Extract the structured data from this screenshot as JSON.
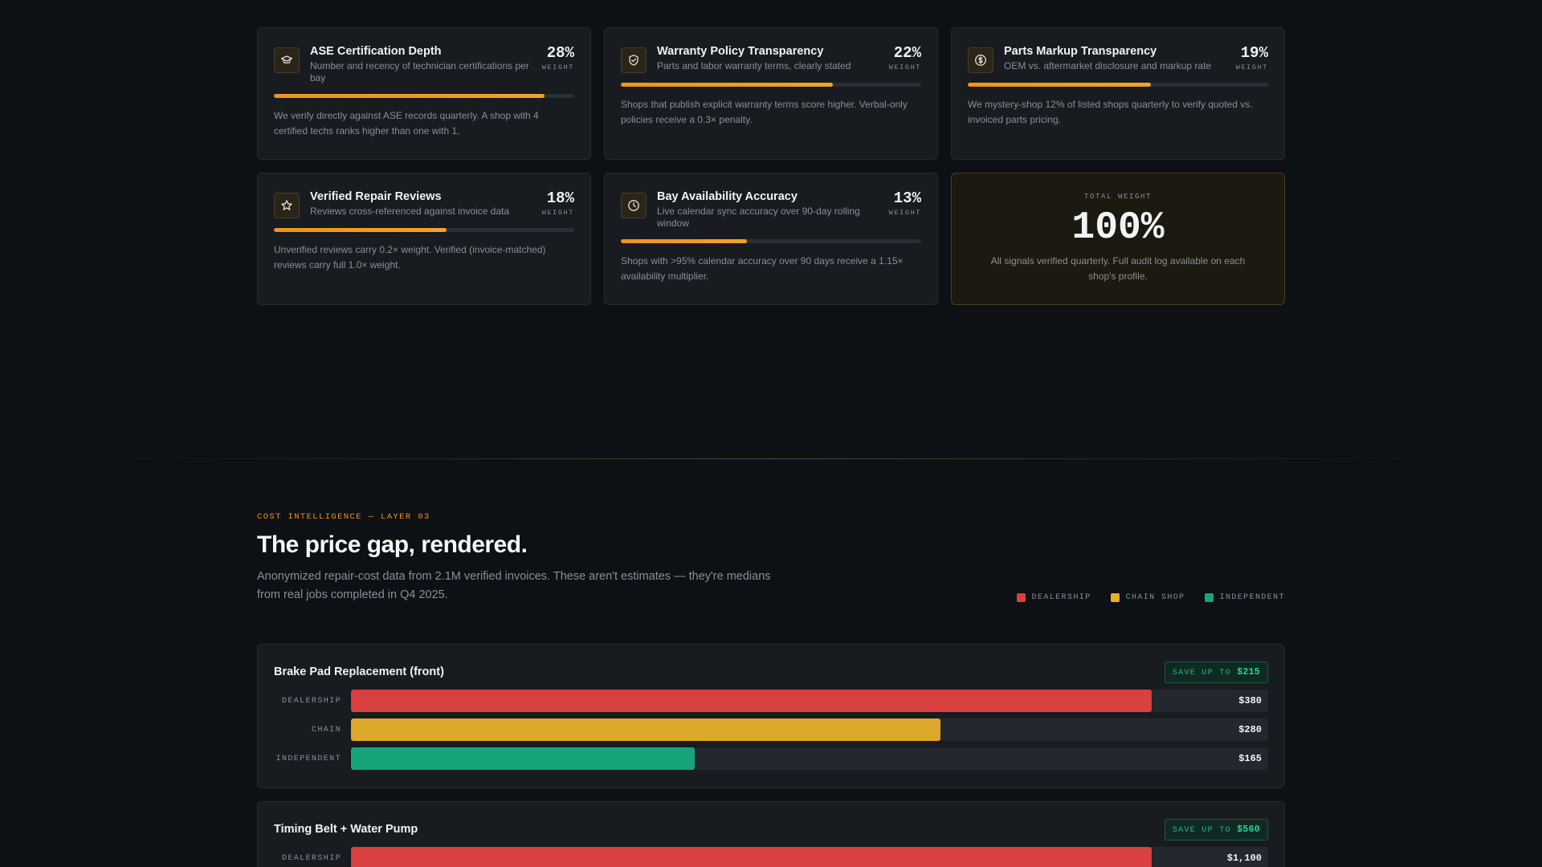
{
  "signals": [
    {
      "title": "ASE Certification Depth",
      "subtitle": "Number and recency of technician certifications per bay",
      "weight": "28%",
      "weight_label": "WEIGHT",
      "weight_fraction": 0.9,
      "description": "We verify directly against ASE records quarterly. A shop with 4 certified techs ranks higher than one with 1.",
      "icon": "graduation-cap-icon"
    },
    {
      "title": "Warranty Policy Transparency",
      "subtitle": "Parts and labor warranty terms, clearly stated",
      "weight": "22%",
      "weight_label": "WEIGHT",
      "weight_fraction": 0.705,
      "description": "Shops that publish explicit warranty terms score higher. Verbal-only policies receive a 0.3× penalty.",
      "icon": "shield-check-icon"
    },
    {
      "title": "Parts Markup Transparency",
      "subtitle": "OEM vs. aftermarket disclosure and markup rate",
      "weight": "19%",
      "weight_label": "WEIGHT",
      "weight_fraction": 0.61,
      "description": "We mystery-shop 12% of listed shops quarterly to verify quoted vs. invoiced parts pricing.",
      "icon": "dollar-coin-icon"
    },
    {
      "title": "Verified Repair Reviews",
      "subtitle": "Reviews cross-referenced against invoice data",
      "weight": "18%",
      "weight_label": "WEIGHT",
      "weight_fraction": 0.575,
      "description": "Unverified reviews carry 0.2× weight. Verified (invoice-matched) reviews carry full 1.0× weight.",
      "icon": "star-icon"
    },
    {
      "title": "Bay Availability Accuracy",
      "subtitle": "Live calendar sync accuracy over 90-day rolling window",
      "weight": "13%",
      "weight_label": "WEIGHT",
      "weight_fraction": 0.42,
      "description": "Shops with >95% calendar accuracy over 90 days receive a 1.15× availability multiplier.",
      "icon": "clock-icon"
    }
  ],
  "total": {
    "label": "TOTAL WEIGHT",
    "value": "100%",
    "description": "All signals verified quarterly. Full audit log available on each shop's profile."
  },
  "cost_section": {
    "eyebrow": "COST INTELLIGENCE — LAYER 03",
    "title": "The price gap, rendered.",
    "description": "Anonymized repair-cost data from 2.1M verified invoices. These aren't estimates — they're medians from real jobs completed in Q4 2025.",
    "legend": [
      {
        "label": "DEALERSHIP",
        "color": "#d94040"
      },
      {
        "label": "CHAIN SHOP",
        "color": "#e3b028"
      },
      {
        "label": "INDEPENDENT",
        "color": "#16a57a"
      }
    ]
  },
  "colors": {
    "accent": "#f0931c",
    "dealership": "#d94040",
    "chain": "#dda82a",
    "independent": "#16a57a"
  },
  "repairs": [
    {
      "title": "Brake Pad Replacement (front)",
      "save_prefix": "SAVE UP TO",
      "save_amount": "$215",
      "rows": [
        {
          "label": "DEALERSHIP",
          "value": "$380",
          "fraction": 0.873,
          "color": "#d94040"
        },
        {
          "label": "CHAIN",
          "value": "$280",
          "fraction": 0.643,
          "color": "#dda82a"
        },
        {
          "label": "INDEPENDENT",
          "value": "$165",
          "fraction": 0.375,
          "color": "#16a57a"
        }
      ]
    },
    {
      "title": "Timing Belt + Water Pump",
      "save_prefix": "SAVE UP TO",
      "save_amount": "$560",
      "rows": [
        {
          "label": "DEALERSHIP",
          "value": "$1,100",
          "fraction": 0.873,
          "color": "#d94040"
        }
      ]
    }
  ]
}
